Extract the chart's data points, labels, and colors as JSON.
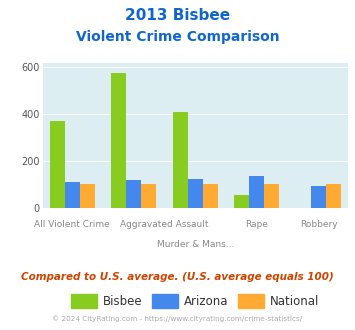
{
  "title_line1": "2013 Bisbee",
  "title_line2": "Violent Crime Comparison",
  "bisbee": [
    370,
    575,
    410,
    55,
    0
  ],
  "arizona": [
    112,
    118,
    122,
    135,
    95
  ],
  "national": [
    100,
    100,
    100,
    100,
    100
  ],
  "color_bisbee": "#88cc22",
  "color_arizona": "#4488ee",
  "color_national": "#ffaa33",
  "bg_color": "#ddeef2",
  "ylim": [
    0,
    620
  ],
  "yticks": [
    0,
    200,
    400,
    600
  ],
  "subtitle": "Compared to U.S. average. (U.S. average equals 100)",
  "footer": "© 2024 CityRating.com - https://www.cityrating.com/crime-statistics/",
  "title_color": "#1166cc",
  "subtitle_color": "#cc4400",
  "footer_color": "#aaaaaa",
  "legend_labels": [
    "Bisbee",
    "Arizona",
    "National"
  ],
  "x_positions": [
    0.5,
    1.65,
    2.8,
    3.95,
    5.1
  ],
  "bar_width": 0.28
}
